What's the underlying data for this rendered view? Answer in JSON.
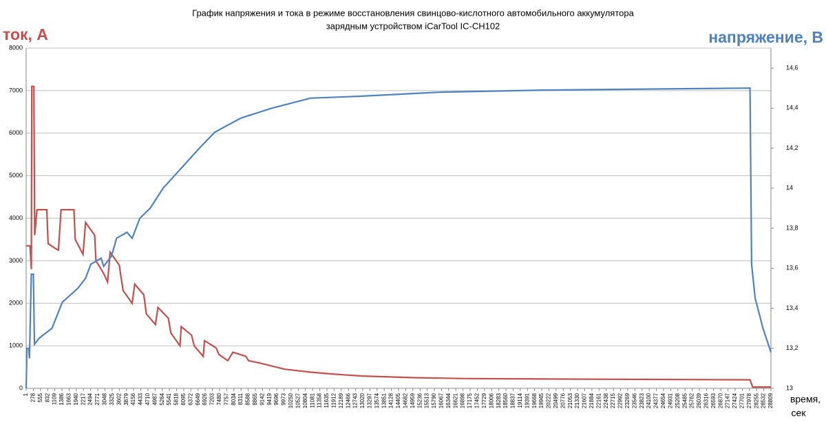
{
  "chart_data": {
    "type": "line",
    "title": "График напряжения и тока в режиме восстановления свинцово-кислотного автомобильного аккумулятора",
    "subtitle": "зарядным устройством iCarTool IC-CH102",
    "ylabel": "ток, А",
    "y2label": "напряжение, В",
    "xlabel": [
      "время,",
      "сек"
    ],
    "xlim": [
      1,
      28809
    ],
    "xticks": [
      1,
      278,
      555,
      832,
      1109,
      1386,
      1663,
      1940,
      2217,
      2494,
      2771,
      3048,
      3325,
      3602,
      3879,
      4156,
      4433,
      4710,
      4987,
      5264,
      5541,
      5818,
      6095,
      6372,
      6649,
      6926,
      7203,
      7480,
      7757,
      8034,
      8311,
      8588,
      8865,
      9142,
      9419,
      9696,
      9973,
      10250,
      10527,
      10804,
      11081,
      11358,
      11635,
      11912,
      12189,
      12466,
      12743,
      13020,
      13297,
      13574,
      13851,
      14128,
      14405,
      14682,
      14959,
      15236,
      15513,
      15790,
      16067,
      16344,
      16621,
      16898,
      17175,
      17452,
      17729,
      18006,
      18283,
      18560,
      18837,
      19114,
      19391,
      19668,
      19945,
      20222,
      20499,
      20776,
      21053,
      21330,
      21607,
      21884,
      22161,
      22438,
      22715,
      22992,
      23269,
      23546,
      23823,
      24100,
      24377,
      24654,
      24931,
      25208,
      25485,
      25762,
      26039,
      26316,
      26593,
      26870,
      27147,
      27424,
      27701,
      27978,
      28255,
      28532,
      28809
    ],
    "ylim": [
      0,
      8000
    ],
    "yticks": [
      0,
      1000,
      2000,
      3000,
      4000,
      5000,
      6000,
      7000,
      8000
    ],
    "y2lim": [
      13,
      14.7
    ],
    "y2ticks": [
      13,
      {
        "value": 13.2,
        "label": "13,2"
      },
      {
        "value": 13.4,
        "label": "13,4"
      },
      {
        "value": 13.6,
        "label": "13,6"
      },
      {
        "value": 13.8,
        "label": "13,8"
      },
      14,
      {
        "value": 14.2,
        "label": "14,2"
      },
      {
        "value": 14.4,
        "label": "14,4"
      },
      {
        "value": 14.6,
        "label": "14,6"
      }
    ],
    "grid": true,
    "series": [
      {
        "color": "#c0504d",
        "x": [
          1,
          150,
          200,
          220,
          300,
          330,
          420,
          800,
          850,
          1100,
          1250,
          1350,
          1850,
          1900,
          2200,
          2300,
          2650,
          2700,
          3000,
          3150,
          3250,
          3600,
          3750,
          4100,
          4200,
          4550,
          4650,
          5000,
          5100,
          5500,
          5600,
          5950,
          6000,
          6400,
          6500,
          6850,
          6900,
          7350,
          7450,
          7800,
          8000,
          8500,
          8600,
          9000,
          10000,
          11000,
          12000,
          13000,
          15000,
          17000,
          20000,
          24000,
          28000,
          28100,
          28809
        ],
        "values": [
          3350,
          3350,
          2800,
          7100,
          7100,
          3600,
          4200,
          4200,
          3400,
          3300,
          3250,
          4200,
          4200,
          3500,
          3150,
          3900,
          3600,
          3000,
          2700,
          2500,
          3200,
          2900,
          2300,
          2000,
          2450,
          2200,
          1750,
          1500,
          1900,
          1650,
          1300,
          1000,
          1450,
          1250,
          1000,
          750,
          1120,
          950,
          800,
          650,
          850,
          750,
          650,
          600,
          450,
          380,
          330,
          290,
          250,
          230,
          220,
          210,
          200,
          30,
          30
        ]
      },
      {
        "color": "#4f81bd",
        "axis": "y2",
        "x": [
          1,
          30,
          100,
          130,
          200,
          280,
          320,
          500,
          1000,
          1400,
          2000,
          2300,
          2500,
          2900,
          3000,
          3300,
          3500,
          3900,
          4100,
          4400,
          4800,
          5300,
          6000,
          6700,
          7300,
          8300,
          9500,
          11000,
          13000,
          16000,
          20000,
          28000,
          28060,
          28200,
          28500,
          28809
        ],
        "values": [
          13.0,
          13.2,
          13.2,
          13.15,
          13.57,
          13.57,
          13.22,
          13.25,
          13.3,
          13.43,
          13.5,
          13.55,
          13.62,
          13.65,
          13.61,
          13.66,
          13.75,
          13.78,
          13.75,
          13.85,
          13.9,
          14.0,
          14.1,
          14.2,
          14.28,
          14.35,
          14.4,
          14.45,
          14.46,
          14.48,
          14.49,
          14.5,
          13.62,
          13.45,
          13.3,
          13.18
        ]
      }
    ]
  }
}
